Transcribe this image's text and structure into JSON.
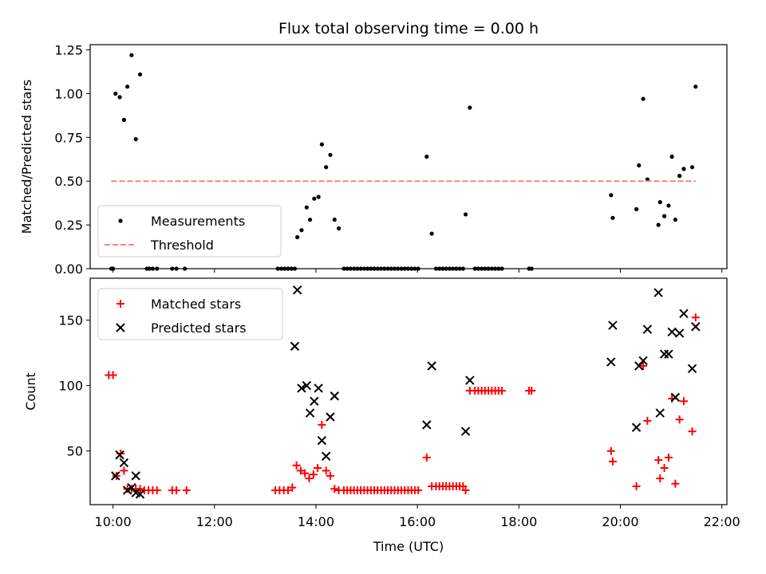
{
  "chart_data": [
    {
      "type": "scatter",
      "title": "Flux total observing time = 0.00 h",
      "ylabel": "Matched/Predicted stars",
      "xlabel": "",
      "xlim": [
        "09:33",
        "22:06"
      ],
      "ylim": [
        0,
        1.28
      ],
      "yticks": [
        0.0,
        0.25,
        0.5,
        0.75,
        1.0,
        1.25
      ],
      "ytick_labels": [
        "0.00",
        "0.25",
        "0.50",
        "0.75",
        "1.00",
        "1.25"
      ],
      "legend_position": "lower-left",
      "series": [
        {
          "name": "Measurements",
          "marker": "dot",
          "color": "#000000",
          "points": [
            [
              "09:58",
              0
            ],
            [
              "10:00",
              0
            ],
            [
              "10:03",
              1.0
            ],
            [
              "10:08",
              0.98
            ],
            [
              "10:13",
              0.85
            ],
            [
              "10:17",
              1.04
            ],
            [
              "10:22",
              1.22
            ],
            [
              "10:27",
              0.74
            ],
            [
              "10:32",
              1.11
            ],
            [
              "10:40",
              0
            ],
            [
              "10:43",
              0
            ],
            [
              "10:47",
              0
            ],
            [
              "10:52",
              0
            ],
            [
              "11:10",
              0
            ],
            [
              "11:15",
              0
            ],
            [
              "11:25",
              0
            ],
            [
              "13:15",
              0
            ],
            [
              "13:19",
              0
            ],
            [
              "13:23",
              0
            ],
            [
              "13:27",
              0
            ],
            [
              "13:31",
              0
            ],
            [
              "13:35",
              0
            ],
            [
              "13:38",
              0.18
            ],
            [
              "13:43",
              0.22
            ],
            [
              "13:49",
              0.35
            ],
            [
              "13:53",
              0.28
            ],
            [
              "13:58",
              0.4
            ],
            [
              "14:03",
              0.41
            ],
            [
              "14:07",
              0.71
            ],
            [
              "14:12",
              0.58
            ],
            [
              "14:17",
              0.65
            ],
            [
              "14:22",
              0.28
            ],
            [
              "14:27",
              0.23
            ],
            [
              "14:33",
              0
            ],
            [
              "14:37",
              0
            ],
            [
              "14:41",
              0
            ],
            [
              "14:45",
              0
            ],
            [
              "14:49",
              0
            ],
            [
              "14:53",
              0
            ],
            [
              "14:57",
              0
            ],
            [
              "15:01",
              0
            ],
            [
              "15:05",
              0
            ],
            [
              "15:09",
              0
            ],
            [
              "15:13",
              0
            ],
            [
              "15:17",
              0
            ],
            [
              "15:21",
              0
            ],
            [
              "15:25",
              0
            ],
            [
              "15:29",
              0
            ],
            [
              "15:33",
              0
            ],
            [
              "15:37",
              0
            ],
            [
              "15:41",
              0
            ],
            [
              "15:45",
              0
            ],
            [
              "15:49",
              0
            ],
            [
              "15:53",
              0
            ],
            [
              "15:57",
              0
            ],
            [
              "16:01",
              0
            ],
            [
              "16:11",
              0.64
            ],
            [
              "16:17",
              0.2
            ],
            [
              "16:22",
              0
            ],
            [
              "16:26",
              0
            ],
            [
              "16:30",
              0
            ],
            [
              "16:34",
              0
            ],
            [
              "16:38",
              0
            ],
            [
              "16:42",
              0
            ],
            [
              "16:46",
              0
            ],
            [
              "16:50",
              0
            ],
            [
              "16:54",
              0
            ],
            [
              "16:57",
              0.31
            ],
            [
              "17:02",
              0.92
            ],
            [
              "17:08",
              0
            ],
            [
              "17:12",
              0
            ],
            [
              "17:16",
              0
            ],
            [
              "17:20",
              0
            ],
            [
              "17:24",
              0
            ],
            [
              "17:28",
              0
            ],
            [
              "17:32",
              0
            ],
            [
              "17:36",
              0
            ],
            [
              "17:40",
              0
            ],
            [
              "18:12",
              0
            ],
            [
              "18:15",
              0
            ],
            [
              "19:49",
              0.42
            ],
            [
              "19:51",
              0.29
            ],
            [
              "20:19",
              0.34
            ],
            [
              "20:22",
              0.59
            ],
            [
              "20:27",
              0.97
            ],
            [
              "20:32",
              0.51
            ],
            [
              "20:45",
              0.25
            ],
            [
              "20:47",
              0.38
            ],
            [
              "20:52",
              0.3
            ],
            [
              "20:57",
              0.36
            ],
            [
              "21:01",
              0.64
            ],
            [
              "21:05",
              0.28
            ],
            [
              "21:10",
              0.53
            ],
            [
              "21:15",
              0.57
            ],
            [
              "21:25",
              0.58
            ],
            [
              "21:29",
              1.04
            ]
          ]
        },
        {
          "name": "Threshold",
          "marker": "dashed-line",
          "color": "#ff7f7f",
          "points": [
            [
              "09:58",
              0.5
            ],
            [
              "21:29",
              0.5
            ]
          ]
        }
      ]
    },
    {
      "type": "scatter",
      "title": "",
      "ylabel": "Count",
      "xlabel": "Time (UTC)",
      "xlim": [
        "09:33",
        "22:06"
      ],
      "ylim": [
        9,
        182
      ],
      "yticks": [
        50,
        100,
        150
      ],
      "ytick_labels": [
        "50",
        "100",
        "150"
      ],
      "xticks": [
        "10:00",
        "12:00",
        "14:00",
        "16:00",
        "18:00",
        "20:00",
        "22:00"
      ],
      "legend_position": "upper-left",
      "series": [
        {
          "name": "Matched stars",
          "marker": "plus",
          "color": "#ff0000",
          "points": [
            [
              "09:55",
              108
            ],
            [
              "10:00",
              108
            ],
            [
              "10:04",
              31
            ],
            [
              "10:09",
              48
            ],
            [
              "10:13",
              35
            ],
            [
              "10:17",
              21
            ],
            [
              "10:22",
              21
            ],
            [
              "10:27",
              21
            ],
            [
              "10:32",
              21
            ],
            [
              "10:37",
              20
            ],
            [
              "10:42",
              20
            ],
            [
              "10:47",
              20
            ],
            [
              "10:52",
              20
            ],
            [
              "11:10",
              20
            ],
            [
              "11:15",
              20
            ],
            [
              "11:27",
              20
            ],
            [
              "13:12",
              20
            ],
            [
              "13:17",
              20
            ],
            [
              "13:22",
              20
            ],
            [
              "13:27",
              20
            ],
            [
              "13:32",
              22
            ],
            [
              "13:37",
              39
            ],
            [
              "13:42",
              35
            ],
            [
              "13:47",
              33
            ],
            [
              "13:52",
              29
            ],
            [
              "13:57",
              32
            ],
            [
              "14:02",
              37
            ],
            [
              "14:07",
              70
            ],
            [
              "14:12",
              35
            ],
            [
              "14:17",
              31
            ],
            [
              "14:22",
              21
            ],
            [
              "14:27",
              20
            ],
            [
              "14:33",
              20
            ],
            [
              "14:37",
              20
            ],
            [
              "14:41",
              20
            ],
            [
              "14:45",
              20
            ],
            [
              "14:49",
              20
            ],
            [
              "14:53",
              20
            ],
            [
              "14:57",
              20
            ],
            [
              "15:01",
              20
            ],
            [
              "15:05",
              20
            ],
            [
              "15:09",
              20
            ],
            [
              "15:13",
              20
            ],
            [
              "15:17",
              20
            ],
            [
              "15:21",
              20
            ],
            [
              "15:25",
              20
            ],
            [
              "15:29",
              20
            ],
            [
              "15:33",
              20
            ],
            [
              "15:37",
              20
            ],
            [
              "15:41",
              20
            ],
            [
              "15:45",
              20
            ],
            [
              "15:49",
              20
            ],
            [
              "15:53",
              20
            ],
            [
              "15:57",
              20
            ],
            [
              "16:01",
              20
            ],
            [
              "16:11",
              45
            ],
            [
              "16:17",
              23
            ],
            [
              "16:22",
              23
            ],
            [
              "16:26",
              23
            ],
            [
              "16:30",
              23
            ],
            [
              "16:34",
              23
            ],
            [
              "16:38",
              23
            ],
            [
              "16:42",
              23
            ],
            [
              "16:46",
              23
            ],
            [
              "16:50",
              23
            ],
            [
              "16:54",
              23
            ],
            [
              "16:57",
              20
            ],
            [
              "17:02",
              96
            ],
            [
              "17:08",
              96
            ],
            [
              "17:12",
              96
            ],
            [
              "17:16",
              96
            ],
            [
              "17:20",
              96
            ],
            [
              "17:24",
              96
            ],
            [
              "17:28",
              96
            ],
            [
              "17:32",
              96
            ],
            [
              "17:36",
              96
            ],
            [
              "17:40",
              96
            ],
            [
              "18:12",
              96
            ],
            [
              "18:15",
              96
            ],
            [
              "19:49",
              50
            ],
            [
              "19:51",
              42
            ],
            [
              "20:19",
              23
            ],
            [
              "20:27",
              115
            ],
            [
              "20:32",
              73
            ],
            [
              "20:45",
              43
            ],
            [
              "20:47",
              29
            ],
            [
              "20:52",
              37
            ],
            [
              "20:57",
              45
            ],
            [
              "21:01",
              90
            ],
            [
              "21:05",
              25
            ],
            [
              "21:10",
              74
            ],
            [
              "21:15",
              88
            ],
            [
              "21:25",
              65
            ],
            [
              "21:29",
              152
            ]
          ]
        },
        {
          "name": "Predicted stars",
          "marker": "x",
          "color": "#000000",
          "points": [
            [
              "10:03",
              31
            ],
            [
              "10:08",
              47
            ],
            [
              "10:13",
              41
            ],
            [
              "10:17",
              20
            ],
            [
              "10:22",
              22
            ],
            [
              "10:27",
              31
            ],
            [
              "10:32",
              17
            ],
            [
              "10:27",
              18
            ],
            [
              "13:35",
              130
            ],
            [
              "13:38",
              173
            ],
            [
              "13:43",
              98
            ],
            [
              "13:49",
              100
            ],
            [
              "13:53",
              79
            ],
            [
              "13:58",
              88
            ],
            [
              "14:03",
              98
            ],
            [
              "14:07",
              58
            ],
            [
              "14:12",
              46
            ],
            [
              "14:17",
              76
            ],
            [
              "14:22",
              92
            ],
            [
              "16:11",
              70
            ],
            [
              "16:17",
              115
            ],
            [
              "16:57",
              65
            ],
            [
              "17:02",
              104
            ],
            [
              "19:49",
              118
            ],
            [
              "19:51",
              146
            ],
            [
              "20:19",
              68
            ],
            [
              "20:22",
              115
            ],
            [
              "20:27",
              119
            ],
            [
              "20:32",
              143
            ],
            [
              "20:45",
              171
            ],
            [
              "20:47",
              79
            ],
            [
              "20:52",
              124
            ],
            [
              "20:57",
              124
            ],
            [
              "21:01",
              141
            ],
            [
              "21:05",
              91
            ],
            [
              "21:10",
              140
            ],
            [
              "21:15",
              155
            ],
            [
              "21:25",
              113
            ],
            [
              "21:29",
              145
            ]
          ]
        }
      ]
    }
  ]
}
